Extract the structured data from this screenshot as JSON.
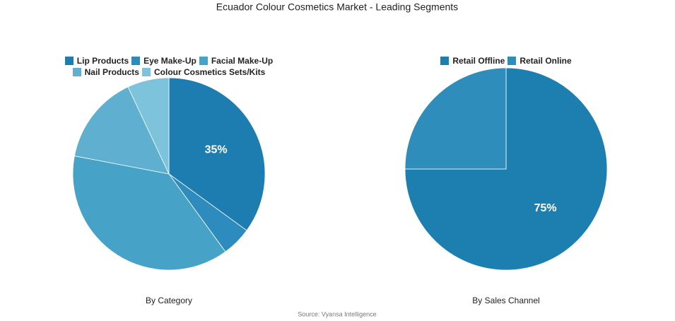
{
  "title": "Ecuador Colour Cosmetics Market - Leading Segments",
  "source": "Source: Vyansa Intelligence",
  "chart_data": [
    {
      "type": "pie",
      "title": "By Category",
      "categories": [
        "Lip Products",
        "Eye Make-Up",
        "Facial Make-Up",
        "Nail Products",
        "Colour Cosmetics Sets/Kits"
      ],
      "values": [
        35,
        5,
        38,
        15,
        7
      ],
      "value_labels": [
        "35%",
        null,
        null,
        null,
        null
      ],
      "colors": [
        "#1d7db0",
        "#2e8bbd",
        "#46a3c7",
        "#5fb0d0",
        "#7dc3dc"
      ]
    },
    {
      "type": "pie",
      "title": "By Sales Channel",
      "categories": [
        "Retail Offline",
        "Retail Online"
      ],
      "values": [
        75,
        25
      ],
      "value_labels": [
        "75%",
        null
      ],
      "colors": [
        "#1c7fb0",
        "#2f8dbb"
      ]
    }
  ]
}
